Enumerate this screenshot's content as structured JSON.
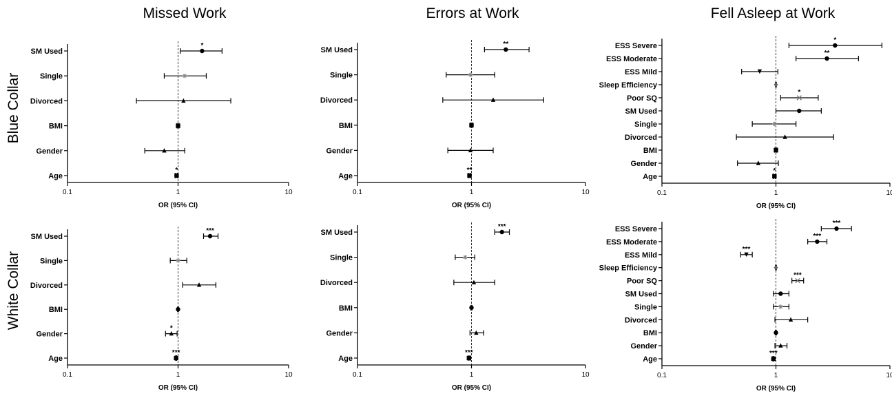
{
  "titles": {
    "col1": "Missed Work",
    "col2": "Errors at Work",
    "col3": "Fell Asleep at Work",
    "row1": "Blue Collar",
    "row2": "White Collar"
  },
  "chart_data": [
    {
      "type": "forest",
      "title": "Missed Work",
      "row_label": "Blue Collar",
      "xlabel": "OR (95% CI)",
      "xscale": "log",
      "xlim": [
        0.1,
        10
      ],
      "xticks": [
        "0.1",
        "1",
        "10"
      ],
      "reference_line": 1,
      "rows": [
        {
          "label": "SM Used",
          "or": 1.65,
          "lo": 1.05,
          "hi": 2.5,
          "sig": "*",
          "marker": "circle"
        },
        {
          "label": "Single",
          "or": 1.15,
          "lo": 0.75,
          "hi": 1.8,
          "sig": "",
          "marker": "star"
        },
        {
          "label": "Divorced",
          "or": 1.12,
          "lo": 0.42,
          "hi": 3.0,
          "sig": "",
          "marker": "triangle"
        },
        {
          "label": "BMI",
          "or": 1.0,
          "lo": 0.98,
          "hi": 1.02,
          "sig": "",
          "marker": "square"
        },
        {
          "label": "Gender",
          "or": 0.75,
          "lo": 0.5,
          "hi": 1.15,
          "sig": "",
          "marker": "triangle"
        },
        {
          "label": "Age",
          "or": 0.97,
          "lo": 0.95,
          "hi": 0.99,
          "sig": "*",
          "marker": "square"
        }
      ]
    },
    {
      "type": "forest",
      "title": "Errors at Work",
      "row_label": "Blue Collar",
      "xlabel": "OR (95% CI)",
      "xscale": "log",
      "xlim": [
        0.1,
        10
      ],
      "xticks": [
        "0.1",
        "1",
        "10"
      ],
      "reference_line": 1,
      "rows": [
        {
          "label": "SM Used",
          "or": 2.0,
          "lo": 1.3,
          "hi": 3.2,
          "sig": "**",
          "marker": "circle"
        },
        {
          "label": "Single",
          "or": 0.98,
          "lo": 0.6,
          "hi": 1.6,
          "sig": "",
          "marker": "star"
        },
        {
          "label": "Divorced",
          "or": 1.55,
          "lo": 0.56,
          "hi": 4.3,
          "sig": "",
          "marker": "triangle"
        },
        {
          "label": "BMI",
          "or": 1.0,
          "lo": 0.98,
          "hi": 1.02,
          "sig": "",
          "marker": "square"
        },
        {
          "label": "Gender",
          "or": 0.98,
          "lo": 0.62,
          "hi": 1.55,
          "sig": "",
          "marker": "triangle"
        },
        {
          "label": "Age",
          "or": 0.96,
          "lo": 0.94,
          "hi": 0.98,
          "sig": "**",
          "marker": "square"
        }
      ]
    },
    {
      "type": "forest",
      "title": "Fell Asleep at Work",
      "row_label": "Blue Collar",
      "xlabel": "OR (95% CI)",
      "xscale": "log",
      "xlim": [
        0.1,
        10
      ],
      "xticks": [
        "0.1",
        "1",
        "10"
      ],
      "reference_line": 1,
      "rows": [
        {
          "label": "ESS Severe",
          "or": 3.3,
          "lo": 1.3,
          "hi": 8.5,
          "sig": "*",
          "marker": "circle"
        },
        {
          "label": "ESS Moderate",
          "or": 2.8,
          "lo": 1.5,
          "hi": 5.3,
          "sig": "**",
          "marker": "circle"
        },
        {
          "label": "ESS Mild",
          "or": 0.72,
          "lo": 0.5,
          "hi": 1.04,
          "sig": "",
          "marker": "tri-down"
        },
        {
          "label": "Sleep Efficiency",
          "or": 1.0,
          "lo": 0.99,
          "hi": 1.01,
          "sig": "",
          "marker": "diamond"
        },
        {
          "label": "Poor SQ",
          "or": 1.6,
          "lo": 1.1,
          "hi": 2.35,
          "sig": "*",
          "marker": "x"
        },
        {
          "label": "SM Used",
          "or": 1.6,
          "lo": 1.0,
          "hi": 2.5,
          "sig": "",
          "marker": "circle"
        },
        {
          "label": "Single",
          "or": 0.97,
          "lo": 0.62,
          "hi": 1.5,
          "sig": "",
          "marker": "star"
        },
        {
          "label": "Divorced",
          "or": 1.2,
          "lo": 0.45,
          "hi": 3.2,
          "sig": "",
          "marker": "triangle"
        },
        {
          "label": "BMI",
          "or": 1.0,
          "lo": 0.98,
          "hi": 1.02,
          "sig": "",
          "marker": "square"
        },
        {
          "label": "Gender",
          "or": 0.7,
          "lo": 0.46,
          "hi": 1.05,
          "sig": "",
          "marker": "triangle"
        },
        {
          "label": "Age",
          "or": 0.97,
          "lo": 0.95,
          "hi": 0.99,
          "sig": "*",
          "marker": "square"
        }
      ]
    },
    {
      "type": "forest",
      "title": "Missed Work",
      "row_label": "White Collar",
      "xlabel": "OR (95% CI)",
      "xscale": "log",
      "xlim": [
        0.1,
        10
      ],
      "xticks": [
        "0.1",
        "1",
        "10"
      ],
      "reference_line": 1,
      "rows": [
        {
          "label": "SM Used",
          "or": 1.95,
          "lo": 1.7,
          "hi": 2.3,
          "sig": "***",
          "marker": "circle"
        },
        {
          "label": "Single",
          "or": 1.0,
          "lo": 0.85,
          "hi": 1.2,
          "sig": "",
          "marker": "star"
        },
        {
          "label": "Divorced",
          "or": 1.55,
          "lo": 1.1,
          "hi": 2.2,
          "sig": "",
          "marker": "triangle"
        },
        {
          "label": "BMI",
          "or": 1.0,
          "lo": 0.99,
          "hi": 1.01,
          "sig": "",
          "marker": "circle"
        },
        {
          "label": "Gender",
          "or": 0.87,
          "lo": 0.77,
          "hi": 0.98,
          "sig": "*",
          "marker": "triangle"
        },
        {
          "label": "Age",
          "or": 0.96,
          "lo": 0.95,
          "hi": 0.97,
          "sig": "***",
          "marker": "square"
        }
      ]
    },
    {
      "type": "forest",
      "title": "Errors at Work",
      "row_label": "White Collar",
      "xlabel": "OR (95% CI)",
      "xscale": "log",
      "xlim": [
        0.1,
        10
      ],
      "xticks": [
        "0.1",
        "1",
        "10"
      ],
      "reference_line": 1,
      "rows": [
        {
          "label": "SM Used",
          "or": 1.85,
          "lo": 1.6,
          "hi": 2.15,
          "sig": "***",
          "marker": "circle"
        },
        {
          "label": "Single",
          "or": 0.88,
          "lo": 0.72,
          "hi": 1.07,
          "sig": "",
          "marker": "star"
        },
        {
          "label": "Divorced",
          "or": 1.05,
          "lo": 0.7,
          "hi": 1.6,
          "sig": "",
          "marker": "triangle"
        },
        {
          "label": "BMI",
          "or": 1.0,
          "lo": 0.99,
          "hi": 1.01,
          "sig": "",
          "marker": "circle"
        },
        {
          "label": "Gender",
          "or": 1.1,
          "lo": 0.97,
          "hi": 1.28,
          "sig": "",
          "marker": "triangle"
        },
        {
          "label": "Age",
          "or": 0.95,
          "lo": 0.94,
          "hi": 0.97,
          "sig": "***",
          "marker": "square"
        }
      ]
    },
    {
      "type": "forest",
      "title": "Fell Asleep at Work",
      "row_label": "White Collar",
      "xlabel": "OR (95% CI)",
      "xscale": "log",
      "xlim": [
        0.1,
        10
      ],
      "xticks": [
        "0.1",
        "1",
        "10"
      ],
      "reference_line": 1,
      "rows": [
        {
          "label": "ESS Severe",
          "or": 3.4,
          "lo": 2.5,
          "hi": 4.6,
          "sig": "***",
          "marker": "circle"
        },
        {
          "label": "ESS Moderate",
          "or": 2.3,
          "lo": 1.9,
          "hi": 2.8,
          "sig": "***",
          "marker": "circle"
        },
        {
          "label": "ESS Mild",
          "or": 0.55,
          "lo": 0.49,
          "hi": 0.62,
          "sig": "***",
          "marker": "tri-down"
        },
        {
          "label": "Sleep Efficiency",
          "or": 1.0,
          "lo": 0.99,
          "hi": 1.01,
          "sig": "",
          "marker": "diamond"
        },
        {
          "label": "Poor SQ",
          "or": 1.55,
          "lo": 1.38,
          "hi": 1.75,
          "sig": "***",
          "marker": "x"
        },
        {
          "label": "SM Used",
          "or": 1.1,
          "lo": 0.95,
          "hi": 1.3,
          "sig": "",
          "marker": "circle"
        },
        {
          "label": "Single",
          "or": 1.1,
          "lo": 0.95,
          "hi": 1.3,
          "sig": "",
          "marker": "star"
        },
        {
          "label": "Divorced",
          "or": 1.35,
          "lo": 0.98,
          "hi": 1.9,
          "sig": "",
          "marker": "triangle"
        },
        {
          "label": "BMI",
          "or": 1.0,
          "lo": 0.99,
          "hi": 1.01,
          "sig": "",
          "marker": "circle"
        },
        {
          "label": "Gender",
          "or": 1.1,
          "lo": 0.98,
          "hi": 1.25,
          "sig": "",
          "marker": "triangle"
        },
        {
          "label": "Age",
          "or": 0.95,
          "lo": 0.94,
          "hi": 0.96,
          "sig": "***",
          "marker": "square"
        }
      ]
    }
  ]
}
